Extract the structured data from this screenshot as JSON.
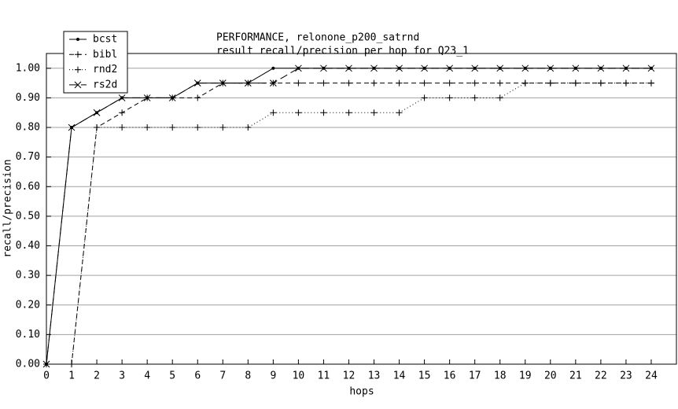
{
  "chart_data": {
    "type": "line",
    "title": "PERFORMANCE, relonone_p200_satrnd",
    "subtitle": "result recall/precision per hop for Q23_1",
    "x_label": "hops",
    "y_label": "recall/precision",
    "x": [
      0,
      1,
      2,
      3,
      4,
      5,
      6,
      7,
      8,
      9,
      10,
      11,
      12,
      13,
      14,
      15,
      16,
      17,
      18,
      19,
      20,
      21,
      22,
      23,
      24
    ],
    "series": [
      {
        "name": "bcst",
        "color": "#000000",
        "dash": "none",
        "marker": "dot",
        "values": [
          0,
          0.8,
          0.85,
          0.9,
          0.9,
          0.9,
          0.95,
          0.95,
          0.95,
          1,
          1,
          1,
          1,
          1,
          1,
          1,
          1,
          1,
          1,
          1,
          1,
          1,
          1,
          1,
          1
        ]
      },
      {
        "name": "bibl",
        "color": "#000000",
        "dash": "6 4",
        "marker": "plus",
        "values": [
          0,
          0,
          0.8,
          0.85,
          0.9,
          0.9,
          0.9,
          0.95,
          0.95,
          0.95,
          0.95,
          0.95,
          0.95,
          0.95,
          0.95,
          0.95,
          0.95,
          0.95,
          0.95,
          0.95,
          0.95,
          0.95,
          0.95,
          0.95,
          0.95
        ]
      },
      {
        "name": "rnd2",
        "color": "#000000",
        "dash": "1 3",
        "marker": "plus",
        "values": [
          0,
          0,
          0.8,
          0.8,
          0.8,
          0.8,
          0.8,
          0.8,
          0.8,
          0.85,
          0.85,
          0.85,
          0.85,
          0.85,
          0.85,
          0.9,
          0.9,
          0.9,
          0.9,
          0.95,
          0.95,
          0.95,
          0.95,
          0.95,
          0.95
        ]
      },
      {
        "name": "rs2d",
        "color": "#000000",
        "dash": "10 5",
        "marker": "cross",
        "values": [
          0,
          0.8,
          0.85,
          0.9,
          0.9,
          0.9,
          0.95,
          0.95,
          0.95,
          0.95,
          1,
          1,
          1,
          1,
          1,
          1,
          1,
          1,
          1,
          1,
          1,
          1,
          1,
          1,
          1
        ]
      }
    ],
    "xlim": [
      0,
      25
    ],
    "ylim": [
      0,
      1.05
    ],
    "xticks": [
      0,
      1,
      2,
      3,
      4,
      5,
      6,
      7,
      8,
      9,
      10,
      11,
      12,
      13,
      14,
      15,
      16,
      17,
      18,
      19,
      20,
      21,
      22,
      23,
      24
    ],
    "yticks": [
      {
        "value": 0,
        "label": "0.00"
      },
      {
        "value": 0.1,
        "label": "0.10"
      },
      {
        "value": 0.2,
        "label": "0.20"
      },
      {
        "value": 0.3,
        "label": "0.30"
      },
      {
        "value": 0.4,
        "label": "0.40"
      },
      {
        "value": 0.5,
        "label": "0.50"
      },
      {
        "value": 0.6,
        "label": "0.60"
      },
      {
        "value": 0.7,
        "label": "0.70"
      },
      {
        "value": 0.8,
        "label": "0.80"
      },
      {
        "value": 0.9,
        "label": "0.90"
      },
      {
        "value": 1,
        "label": "1.00"
      }
    ],
    "grid": true,
    "legend": "top-left"
  }
}
